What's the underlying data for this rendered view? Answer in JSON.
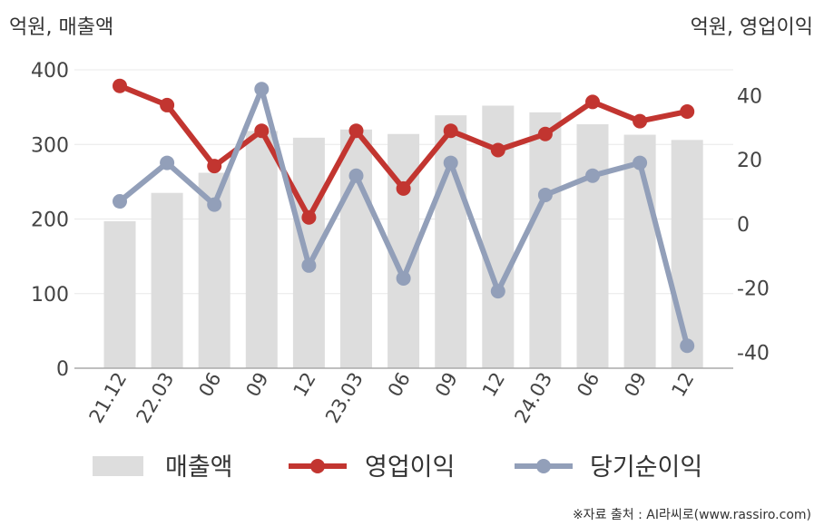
{
  "chart_data": {
    "type": "bar+line",
    "left_axis_label": "억원, 매출액",
    "right_axis_label": "억원, 영업이익",
    "categories": [
      "21.12",
      "22.03",
      "06",
      "09",
      "12",
      "23.03",
      "06",
      "09",
      "12",
      "24.03",
      "06",
      "09",
      "12"
    ],
    "left_ylim": [
      0,
      400
    ],
    "left_ticks": [
      "0",
      "100",
      "200",
      "300",
      "400"
    ],
    "right_ylim": [
      -45,
      48
    ],
    "right_ticks": [
      "-40",
      "-20",
      "0",
      "20",
      "40"
    ],
    "series": [
      {
        "name": "매출액",
        "type": "bar",
        "axis": "left",
        "color": "#dddddd",
        "values": [
          197,
          235,
          262,
          318,
          309,
          320,
          314,
          339,
          352,
          343,
          327,
          313,
          306
        ]
      },
      {
        "name": "영업이익",
        "type": "line",
        "axis": "right",
        "color": "#c23530",
        "values": [
          43,
          37,
          18,
          29,
          2,
          29,
          11,
          29,
          23,
          28,
          38,
          32,
          35
        ]
      },
      {
        "name": "당기순이익",
        "type": "line",
        "axis": "right",
        "color": "#929fb9",
        "values": [
          7,
          19,
          6,
          42,
          -13,
          15,
          -17,
          19,
          -21,
          9,
          15,
          19,
          -38
        ]
      }
    ],
    "legend_placement": "bottom",
    "grid": true
  },
  "source_note": "※자료 출처 : AI라씨로(www.rassiro.com)"
}
